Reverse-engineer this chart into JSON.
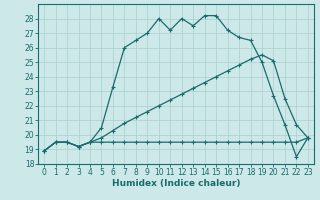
{
  "xlabel": "Humidex (Indice chaleur)",
  "bg_color": "#cce8e8",
  "line_color": "#1a6b6b",
  "grid_color": "#aacfcf",
  "xlim_min": -0.5,
  "xlim_max": 23.5,
  "ylim_min": 18,
  "ylim_max": 29,
  "xticks": [
    0,
    1,
    2,
    3,
    4,
    5,
    6,
    7,
    8,
    9,
    10,
    11,
    12,
    13,
    14,
    15,
    16,
    17,
    18,
    19,
    20,
    21,
    22,
    23
  ],
  "yticks": [
    18,
    19,
    20,
    21,
    22,
    23,
    24,
    25,
    26,
    27,
    28
  ],
  "line1_x": [
    0,
    1,
    2,
    3,
    4,
    5,
    6,
    7,
    8,
    9,
    10,
    11,
    12,
    13,
    14,
    15,
    16,
    17,
    18,
    19,
    20,
    21,
    22,
    23
  ],
  "line1_y": [
    18.9,
    19.5,
    19.5,
    19.2,
    19.5,
    19.5,
    19.5,
    19.5,
    19.5,
    19.5,
    19.5,
    19.5,
    19.5,
    19.5,
    19.5,
    19.5,
    19.5,
    19.5,
    19.5,
    19.5,
    19.5,
    19.5,
    19.5,
    19.8
  ],
  "line2_x": [
    0,
    1,
    2,
    3,
    4,
    5,
    6,
    7,
    8,
    9,
    10,
    11,
    12,
    13,
    14,
    15,
    16,
    17,
    18,
    19,
    20,
    21,
    22,
    23
  ],
  "line2_y": [
    18.9,
    19.5,
    19.5,
    19.2,
    19.5,
    19.8,
    20.3,
    20.8,
    21.2,
    21.6,
    22.0,
    22.4,
    22.8,
    23.2,
    23.6,
    24.0,
    24.4,
    24.8,
    25.2,
    25.5,
    25.1,
    22.5,
    20.7,
    19.8
  ],
  "line3_x": [
    0,
    1,
    2,
    3,
    4,
    5,
    6,
    7,
    8,
    9,
    10,
    11,
    12,
    13,
    14,
    15,
    16,
    17,
    18,
    19,
    20,
    21,
    22,
    23
  ],
  "line3_y": [
    18.9,
    19.5,
    19.5,
    19.2,
    19.5,
    20.5,
    23.3,
    26.0,
    26.5,
    27.0,
    28.0,
    27.2,
    28.0,
    27.5,
    28.2,
    28.2,
    27.2,
    26.7,
    26.5,
    25.0,
    22.7,
    20.7,
    18.5,
    19.8
  ],
  "xlabel_fontsize": 6.5,
  "tick_fontsize": 5.5,
  "lw": 0.9
}
